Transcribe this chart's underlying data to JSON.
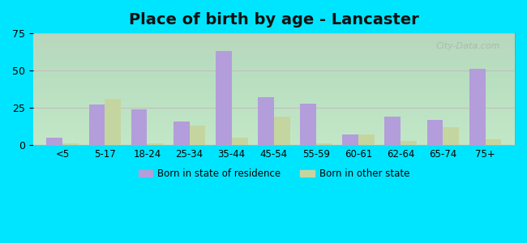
{
  "categories": [
    "<5",
    "5-17",
    "18-24",
    "25-34",
    "35-44",
    "45-54",
    "55-59",
    "60-61",
    "62-64",
    "65-74",
    "75+"
  ],
  "born_in_state": [
    5,
    27,
    24,
    16,
    63,
    32,
    28,
    7,
    19,
    17,
    51
  ],
  "born_in_other": [
    1,
    31,
    1,
    13,
    5,
    19,
    1,
    7,
    3,
    12,
    4
  ],
  "color_state": "#b39ddb",
  "color_other": "#c5d5a0",
  "title": "Place of birth by age - Lancaster",
  "title_fontsize": 14,
  "legend_state": "Born in state of residence",
  "legend_other": "Born in other state",
  "ylim": [
    0,
    75
  ],
  "yticks": [
    0,
    25,
    50,
    75
  ],
  "background_color": "#e0f7e0",
  "outer_background": "#00e5ff",
  "bar_width": 0.38,
  "grid_color": "#c0c0c0"
}
